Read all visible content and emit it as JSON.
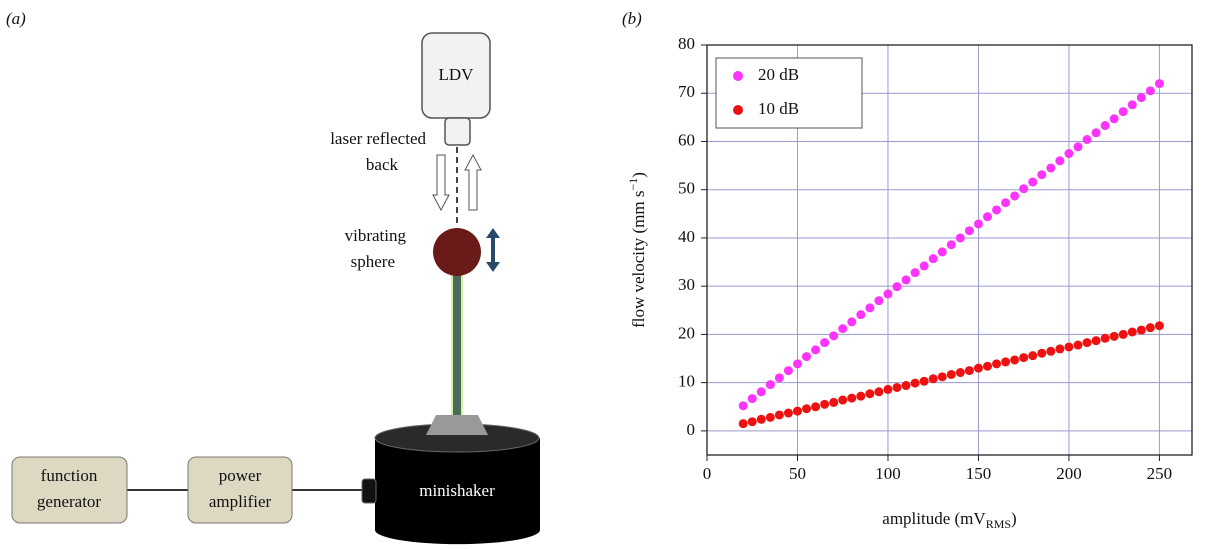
{
  "diagram": {
    "panel_label": "(a)",
    "ldv": "LDV",
    "laser_label": [
      "laser reflected",
      "back"
    ],
    "sphere_label": [
      "vibrating",
      "sphere"
    ],
    "shaker": "minishaker",
    "generator": [
      "function",
      "generator"
    ],
    "amplifier": [
      "power",
      "amplifier"
    ]
  },
  "chart_data": {
    "type": "scatter",
    "panel_label": "(b)",
    "xlabel": [
      "amplitude (mV",
      "RMS",
      ")"
    ],
    "ylabel": [
      "flow velocity (mm s",
      "−1",
      ")"
    ],
    "xlim": [
      0,
      268
    ],
    "ylim": [
      -5,
      80
    ],
    "xticks": [
      0,
      50,
      100,
      150,
      200,
      250
    ],
    "yticks": [
      0,
      10,
      20,
      30,
      40,
      50,
      60,
      70,
      80
    ],
    "grid": true,
    "legend": "upper-left",
    "x": [
      20,
      25,
      30,
      35,
      40,
      45,
      50,
      55,
      60,
      65,
      70,
      75,
      80,
      85,
      90,
      95,
      100,
      105,
      110,
      115,
      120,
      125,
      130,
      135,
      140,
      145,
      150,
      155,
      160,
      165,
      170,
      175,
      180,
      185,
      190,
      195,
      200,
      205,
      210,
      215,
      220,
      225,
      230,
      235,
      240,
      245,
      250
    ],
    "series": [
      {
        "name": "20 dB",
        "color": "#ff33ff",
        "values": [
          5.2,
          6.7,
          8.1,
          9.6,
          11.0,
          12.5,
          13.9,
          15.4,
          16.8,
          18.3,
          19.7,
          21.2,
          22.6,
          24.1,
          25.5,
          27.0,
          28.4,
          29.9,
          31.3,
          32.8,
          34.2,
          35.7,
          37.1,
          38.6,
          40.0,
          41.5,
          42.9,
          44.4,
          45.8,
          47.3,
          48.7,
          50.2,
          51.6,
          53.1,
          54.5,
          56.0,
          57.5,
          58.9,
          60.4,
          61.8,
          63.3,
          64.7,
          66.2,
          67.6,
          69.1,
          70.5,
          72.0
        ]
      },
      {
        "name": "10 dB",
        "color": "#ee1111",
        "values": [
          1.5,
          1.9,
          2.4,
          2.8,
          3.3,
          3.7,
          4.1,
          4.6,
          5.0,
          5.5,
          5.9,
          6.4,
          6.8,
          7.2,
          7.7,
          8.1,
          8.6,
          9.0,
          9.4,
          9.9,
          10.3,
          10.8,
          11.2,
          11.7,
          12.1,
          12.5,
          13.0,
          13.4,
          13.9,
          14.3,
          14.7,
          15.2,
          15.6,
          16.1,
          16.5,
          17.0,
          17.4,
          17.8,
          18.3,
          18.7,
          19.2,
          19.6,
          20.0,
          20.5,
          20.9,
          21.4,
          21.8
        ]
      }
    ]
  }
}
